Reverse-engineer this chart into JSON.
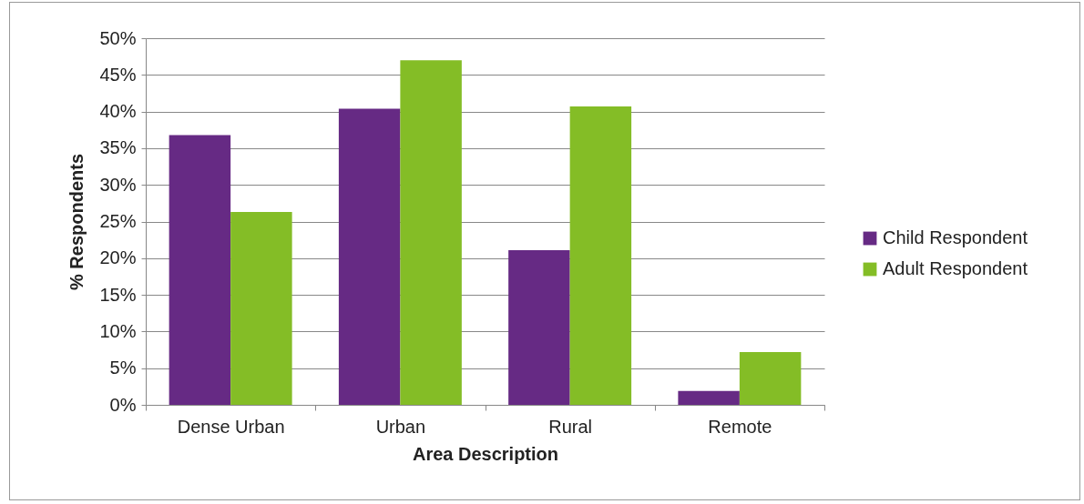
{
  "chart_data": {
    "type": "bar",
    "xlabel": "Area Description",
    "ylabel": "% Respondents",
    "categories": [
      "Dense Urban",
      "Urban",
      "Rural",
      "Remote"
    ],
    "series": [
      {
        "name": "Child Respondent",
        "color": "#662a84",
        "values": [
          36.8,
          40.4,
          21.1,
          1.9
        ]
      },
      {
        "name": "Adult Respondent",
        "color": "#84bd26",
        "values": [
          26.3,
          47.0,
          40.7,
          7.2
        ]
      }
    ],
    "ylim": [
      0,
      50
    ],
    "yticks": [
      {
        "value": 0,
        "label": "0%"
      },
      {
        "value": 5,
        "label": "5%"
      },
      {
        "value": 10,
        "label": "10%"
      },
      {
        "value": 15,
        "label": "15%"
      },
      {
        "value": 20,
        "label": "20%"
      },
      {
        "value": 25,
        "label": "25%"
      },
      {
        "value": 30,
        "label": "30%"
      },
      {
        "value": 35,
        "label": "35%"
      },
      {
        "value": 40,
        "label": "40%"
      },
      {
        "value": 45,
        "label": "45%"
      },
      {
        "value": 50,
        "label": "50%"
      }
    ],
    "grid": "y",
    "legend": "right"
  }
}
